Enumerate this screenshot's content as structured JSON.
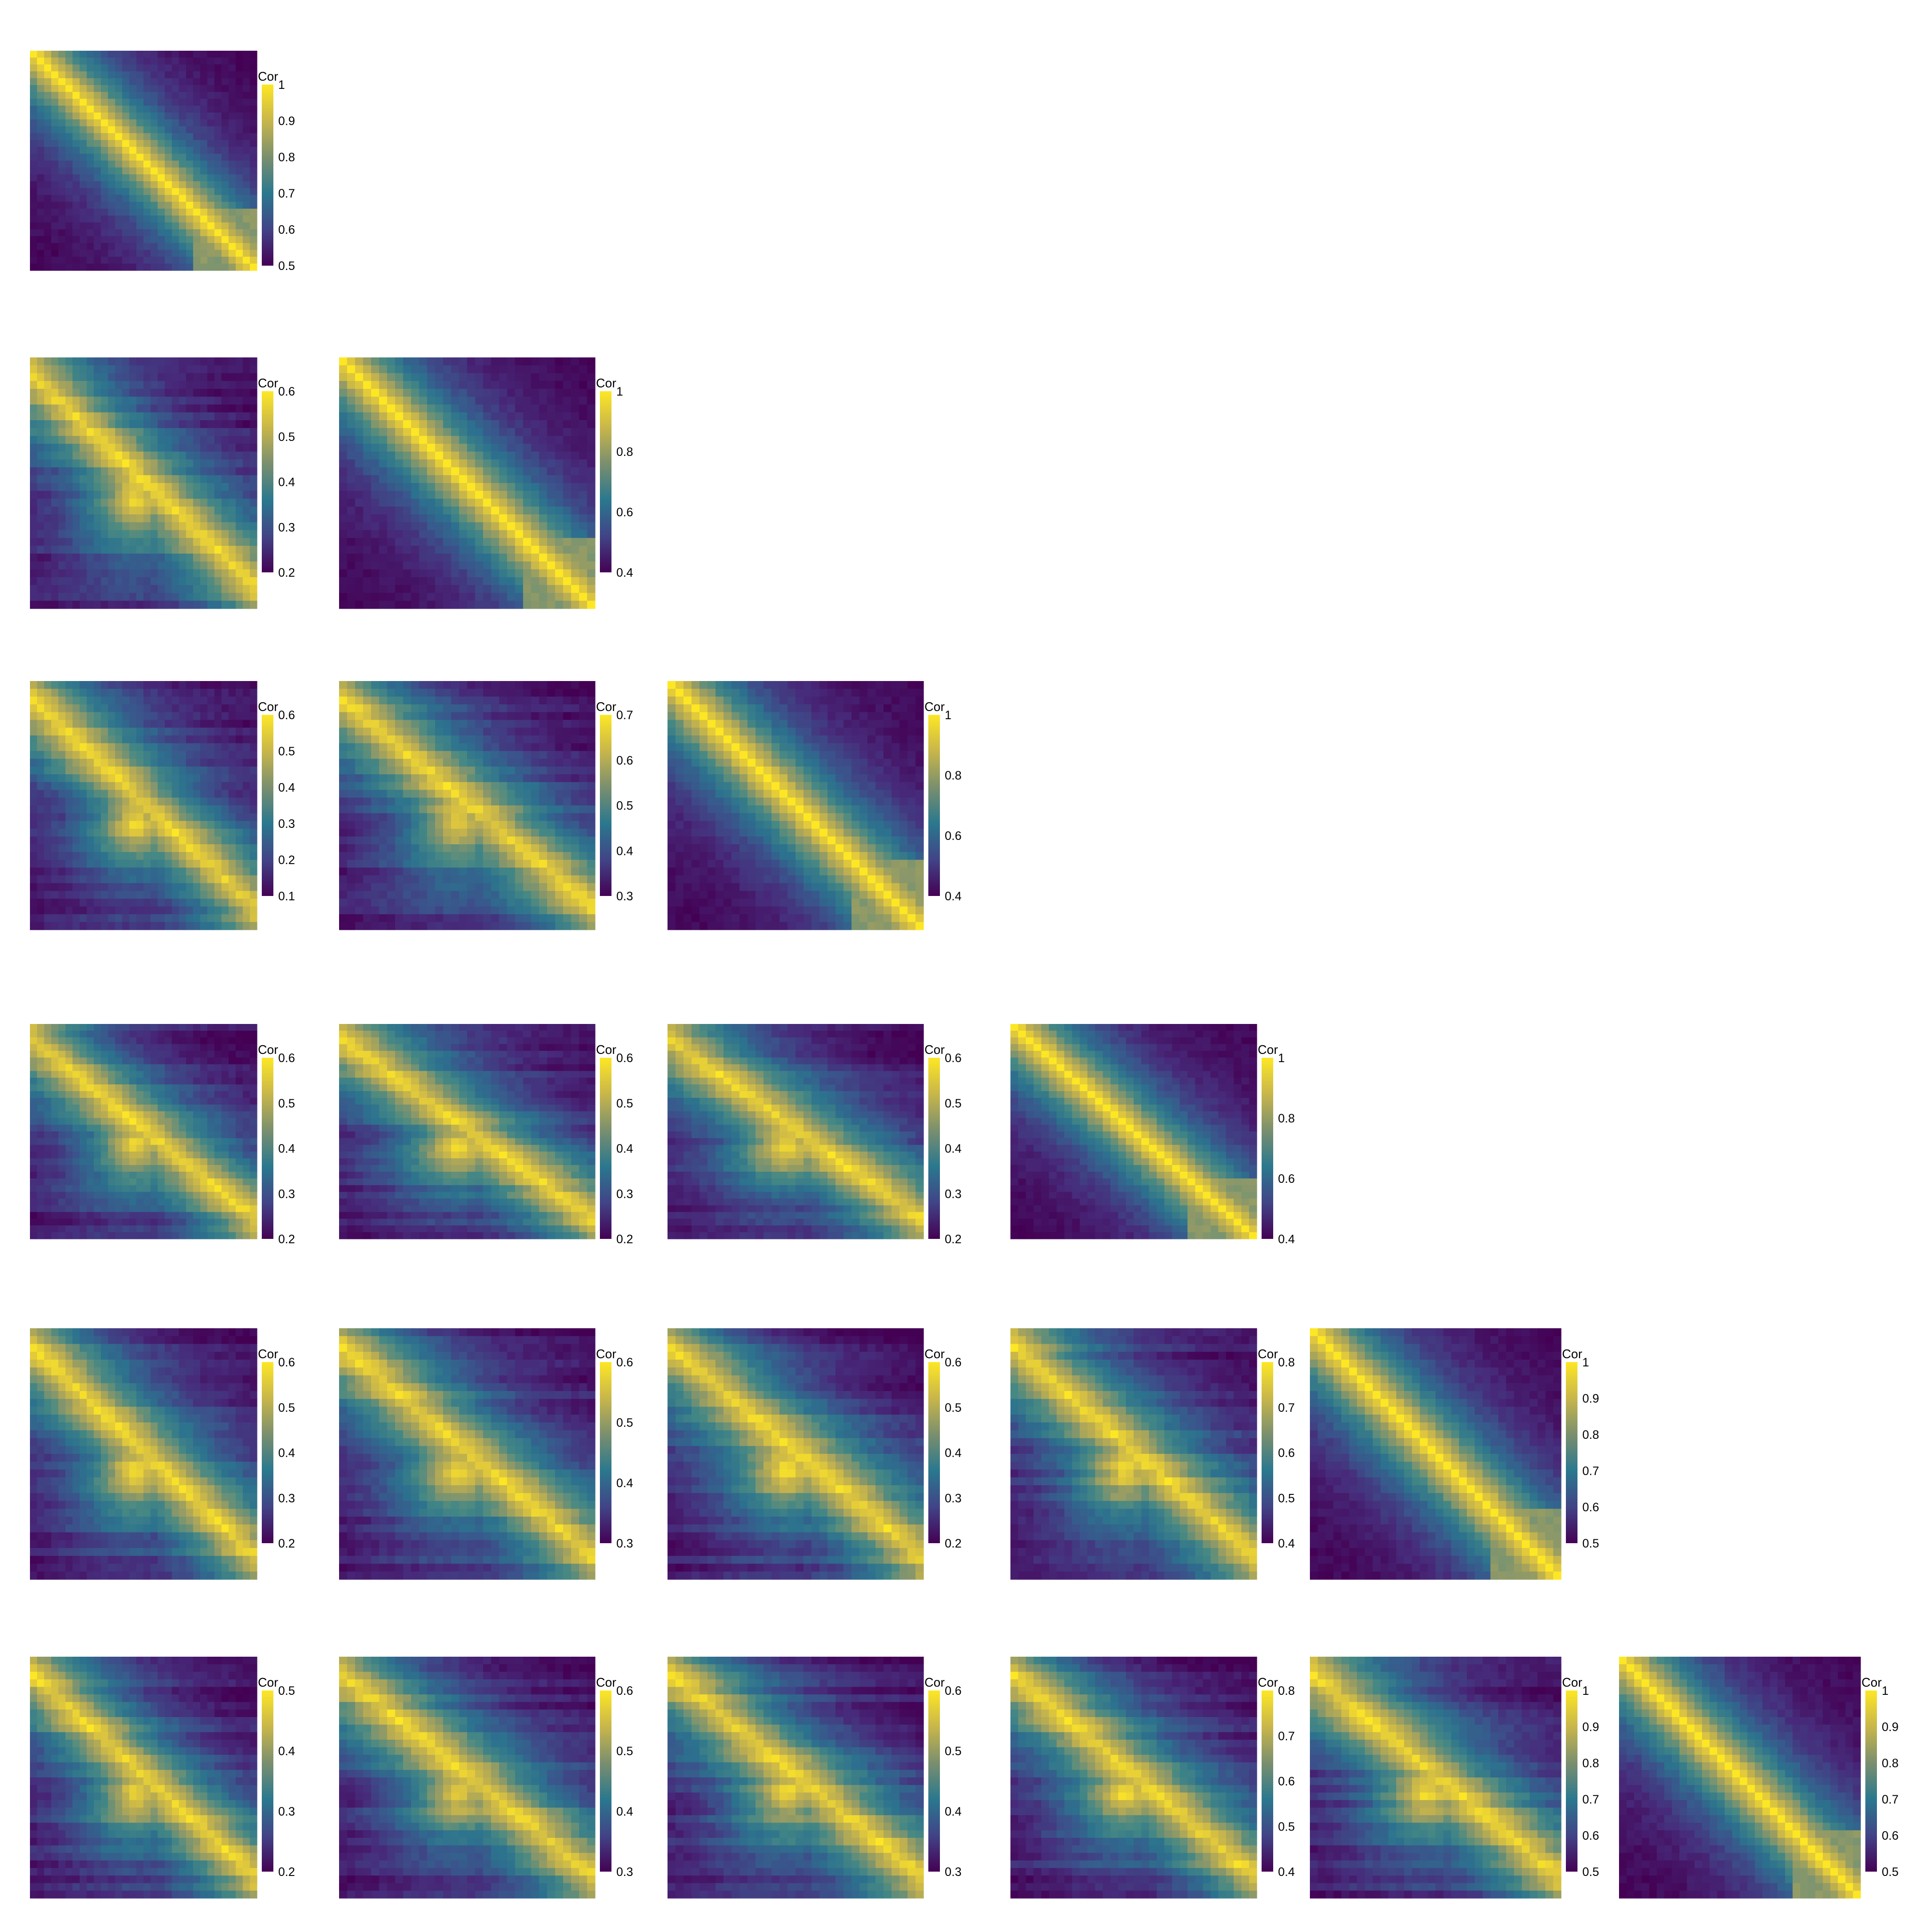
{
  "legend_title": "Cor",
  "palette": [
    "#440154",
    "#414487",
    "#2a788e",
    "#22a884",
    "#7ad151",
    "#fde725"
  ],
  "palette_used": [
    "#440154",
    "#472c7a",
    "#3b528b",
    "#2c728e",
    "#4a8a8a",
    "#8f9a66",
    "#c9b348",
    "#fde725"
  ],
  "chart_data": [
    {
      "type": "heatmap",
      "row": 1,
      "col": 1,
      "size": 32,
      "block_pattern": [
        0,
        4,
        9,
        16,
        24,
        32
      ],
      "legend_ticks": [
        "1",
        "0.9",
        "0.8",
        "0.7",
        "0.6",
        "0.5"
      ],
      "color_range": [
        0.5,
        1.0
      ]
    },
    {
      "type": "heatmap",
      "row": 2,
      "col": 1,
      "size": 32,
      "offdiag": true,
      "legend_ticks": [
        "0.6",
        "0.5",
        "0.4",
        "0.3",
        "0.2"
      ],
      "color_range": [
        0.2,
        0.6
      ]
    },
    {
      "type": "heatmap",
      "row": 2,
      "col": 2,
      "size": 32,
      "legend_ticks": [
        "1",
        "0.8",
        "0.6",
        "0.4"
      ],
      "color_range": [
        0.4,
        1.0
      ]
    },
    {
      "type": "heatmap",
      "row": 3,
      "col": 1,
      "size": 32,
      "offdiag": true,
      "legend_ticks": [
        "0.6",
        "0.5",
        "0.4",
        "0.3",
        "0.2",
        "0.1"
      ],
      "color_range": [
        0.1,
        0.6
      ]
    },
    {
      "type": "heatmap",
      "row": 3,
      "col": 2,
      "size": 32,
      "offdiag": true,
      "legend_ticks": [
        "0.7",
        "0.6",
        "0.5",
        "0.4",
        "0.3"
      ],
      "color_range": [
        0.3,
        0.7
      ]
    },
    {
      "type": "heatmap",
      "row": 3,
      "col": 3,
      "size": 32,
      "legend_ticks": [
        "1",
        "0.8",
        "0.6",
        "0.4"
      ],
      "color_range": [
        0.4,
        1.0
      ]
    },
    {
      "type": "heatmap",
      "row": 4,
      "col": 1,
      "size": 32,
      "offdiag": true,
      "legend_ticks": [
        "0.6",
        "0.5",
        "0.4",
        "0.3",
        "0.2"
      ],
      "color_range": [
        0.2,
        0.6
      ]
    },
    {
      "type": "heatmap",
      "row": 4,
      "col": 2,
      "size": 32,
      "offdiag": true,
      "legend_ticks": [
        "0.6",
        "0.5",
        "0.4",
        "0.3",
        "0.2"
      ],
      "color_range": [
        0.2,
        0.6
      ]
    },
    {
      "type": "heatmap",
      "row": 4,
      "col": 3,
      "size": 32,
      "offdiag": true,
      "legend_ticks": [
        "0.6",
        "0.5",
        "0.4",
        "0.3",
        "0.2"
      ],
      "color_range": [
        0.2,
        0.6
      ]
    },
    {
      "type": "heatmap",
      "row": 4,
      "col": 4,
      "size": 32,
      "legend_ticks": [
        "1",
        "0.8",
        "0.6",
        "0.4"
      ],
      "color_range": [
        0.4,
        1.0
      ]
    },
    {
      "type": "heatmap",
      "row": 5,
      "col": 1,
      "size": 32,
      "offdiag": true,
      "legend_ticks": [
        "0.6",
        "0.5",
        "0.4",
        "0.3",
        "0.2"
      ],
      "color_range": [
        0.2,
        0.6
      ]
    },
    {
      "type": "heatmap",
      "row": 5,
      "col": 2,
      "size": 32,
      "offdiag": true,
      "legend_ticks": [
        "0.6",
        "0.5",
        "0.4",
        "0.3"
      ],
      "color_range": [
        0.3,
        0.6
      ]
    },
    {
      "type": "heatmap",
      "row": 5,
      "col": 3,
      "size": 32,
      "offdiag": true,
      "legend_ticks": [
        "0.6",
        "0.5",
        "0.4",
        "0.3",
        "0.2"
      ],
      "color_range": [
        0.2,
        0.6
      ]
    },
    {
      "type": "heatmap",
      "row": 5,
      "col": 4,
      "size": 32,
      "offdiag": true,
      "legend_ticks": [
        "0.8",
        "0.7",
        "0.6",
        "0.5",
        "0.4"
      ],
      "color_range": [
        0.4,
        0.8
      ]
    },
    {
      "type": "heatmap",
      "row": 5,
      "col": 5,
      "size": 32,
      "legend_ticks": [
        "1",
        "0.9",
        "0.8",
        "0.7",
        "0.6",
        "0.5"
      ],
      "color_range": [
        0.5,
        1.0
      ]
    },
    {
      "type": "heatmap",
      "row": 6,
      "col": 1,
      "size": 32,
      "offdiag": true,
      "legend_ticks": [
        "0.5",
        "0.4",
        "0.3",
        "0.2"
      ],
      "color_range": [
        0.2,
        0.5
      ]
    },
    {
      "type": "heatmap",
      "row": 6,
      "col": 2,
      "size": 32,
      "offdiag": true,
      "legend_ticks": [
        "0.6",
        "0.5",
        "0.4",
        "0.3"
      ],
      "color_range": [
        0.3,
        0.6
      ]
    },
    {
      "type": "heatmap",
      "row": 6,
      "col": 3,
      "size": 32,
      "offdiag": true,
      "legend_ticks": [
        "0.6",
        "0.5",
        "0.4",
        "0.3"
      ],
      "color_range": [
        0.3,
        0.6
      ]
    },
    {
      "type": "heatmap",
      "row": 6,
      "col": 4,
      "size": 32,
      "offdiag": true,
      "legend_ticks": [
        "0.8",
        "0.7",
        "0.6",
        "0.5",
        "0.4"
      ],
      "color_range": [
        0.4,
        0.8
      ]
    },
    {
      "type": "heatmap",
      "row": 6,
      "col": 5,
      "size": 32,
      "offdiag": true,
      "legend_ticks": [
        "1",
        "0.9",
        "0.8",
        "0.7",
        "0.6",
        "0.5"
      ],
      "color_range": [
        0.5,
        1.0
      ]
    },
    {
      "type": "heatmap",
      "row": 6,
      "col": 6,
      "size": 32,
      "legend_ticks": [
        "1",
        "0.9",
        "0.8",
        "0.7",
        "0.6",
        "0.5"
      ],
      "color_range": [
        0.5,
        1.0
      ]
    }
  ]
}
